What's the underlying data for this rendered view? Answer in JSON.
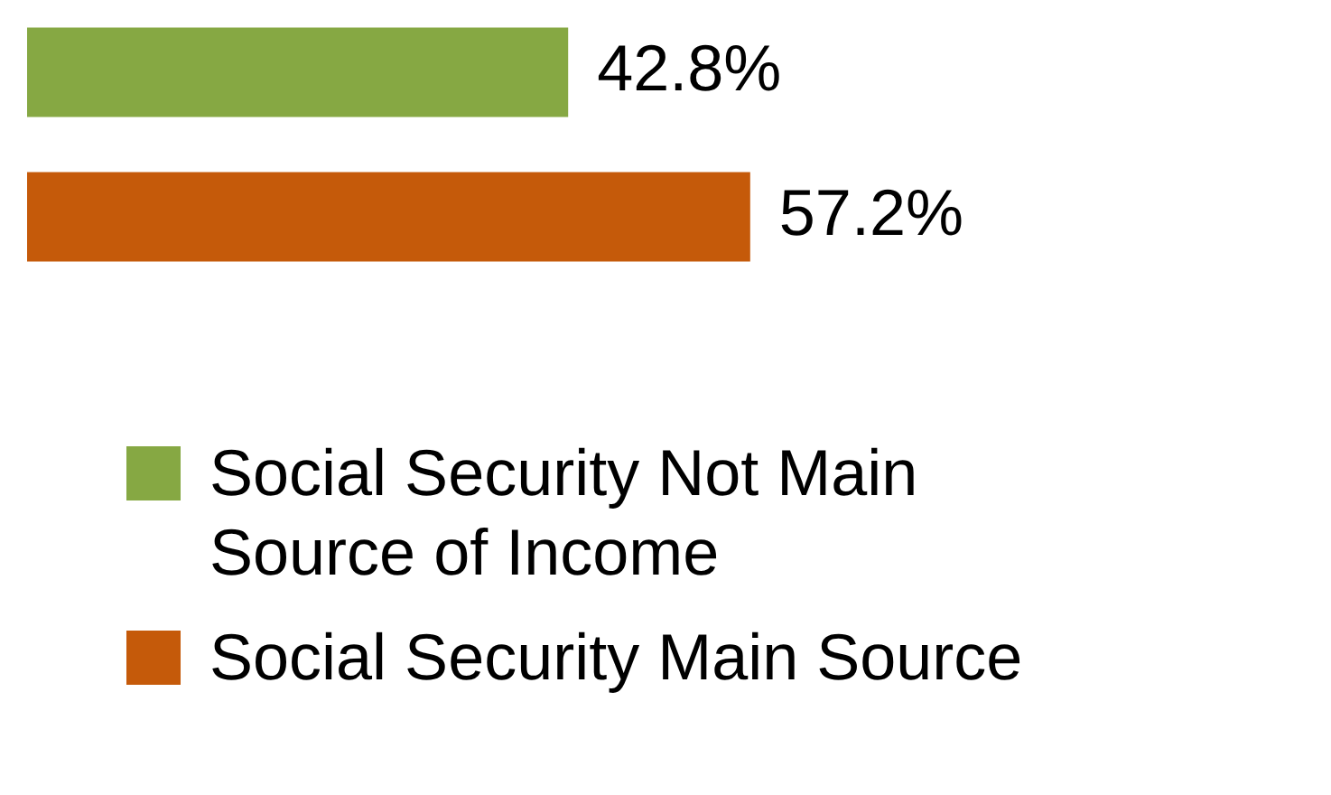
{
  "chart_data": {
    "type": "bar",
    "orientation": "horizontal",
    "categories": [
      null
    ],
    "series": [
      {
        "name": "Social Security Not Main Source of Income",
        "color": "#86a843",
        "values": [
          42.8
        ],
        "value_labels": [
          "42.8%"
        ]
      },
      {
        "name": "Social Security Main Source",
        "color": "#c55a0a",
        "values": [
          57.2
        ],
        "value_labels": [
          "57.2%"
        ]
      }
    ],
    "tick_labels": false,
    "legend": "bottom"
  }
}
